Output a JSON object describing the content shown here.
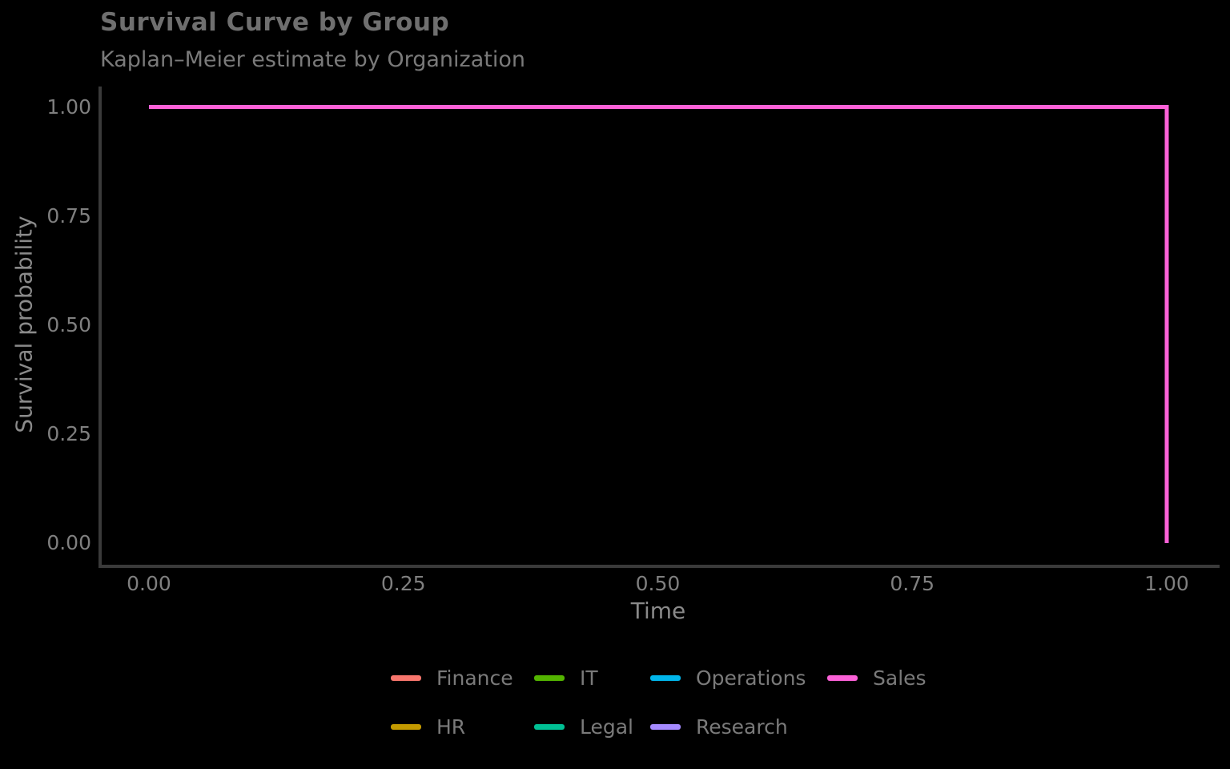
{
  "chart_data": {
    "type": "line",
    "kind": "kaplan-meier-step-curve",
    "title": "Survival Curve by Group",
    "subtitle": "Kaplan–Meier estimate by Organization",
    "xlabel": "Time",
    "ylabel": "Survival probability",
    "xlim": [
      0,
      1
    ],
    "ylim": [
      0,
      1
    ],
    "grid": false,
    "background_color": "#000000",
    "axis_line_color": "#3a3a3a",
    "xticks": [
      {
        "value": 0,
        "label": "0.00"
      },
      {
        "value": 0.25,
        "label": "0.25"
      },
      {
        "value": 0.5,
        "label": "0.50"
      },
      {
        "value": 0.75,
        "label": "0.75"
      },
      {
        "value": 1,
        "label": "1.00"
      }
    ],
    "yticks": [
      {
        "value": 0,
        "label": "0.00"
      },
      {
        "value": 0.25,
        "label": "0.25"
      },
      {
        "value": 0.5,
        "label": "0.50"
      },
      {
        "value": 0.75,
        "label": "0.75"
      },
      {
        "value": 1,
        "label": "1.00"
      }
    ],
    "series": [
      {
        "name": "Sales",
        "color": "#FB61D7",
        "points": [
          [
            0,
            1
          ],
          [
            1,
            1
          ],
          [
            1,
            0
          ]
        ]
      }
    ],
    "legend_position": "bottom",
    "legend": [
      {
        "label": "Finance",
        "color": "#F8766D"
      },
      {
        "label": "HR",
        "color": "#C49A00"
      },
      {
        "label": "IT",
        "color": "#53B400"
      },
      {
        "label": "Legal",
        "color": "#00C094"
      },
      {
        "label": "Operations",
        "color": "#00B6EB"
      },
      {
        "label": "Research",
        "color": "#A58AFF"
      },
      {
        "label": "Sales",
        "color": "#FB61D7"
      }
    ]
  }
}
